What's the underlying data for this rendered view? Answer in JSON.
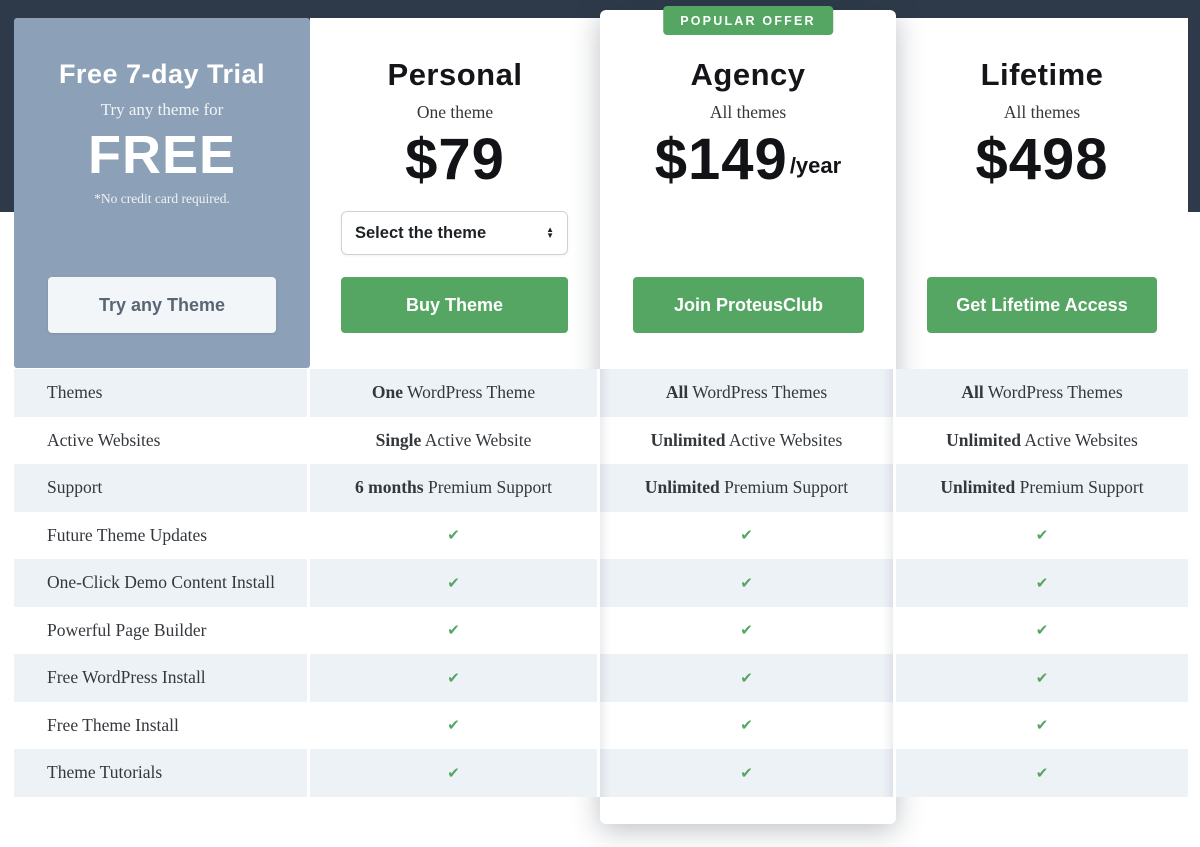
{
  "colors": {
    "navy_band": "#2e3a49",
    "trial_panel_blue": "#8ca1b7",
    "accent_green": "#55a663",
    "row_light": "#edf2f7"
  },
  "trial": {
    "title": "Free 7-day Trial",
    "subtitle": "Try any theme for",
    "price": "FREE",
    "note": "*No credit card required.",
    "button_label": "Try any Theme"
  },
  "plans": {
    "personal": {
      "name": "Personal",
      "subtitle": "One theme",
      "price": "$79",
      "select_label": "Select the theme",
      "button_label": "Buy Theme"
    },
    "agency": {
      "badge": "POPULAR OFFER",
      "name": "Agency",
      "subtitle": "All themes",
      "price": "$149",
      "price_suffix": "/year",
      "button_label": "Join ProteusClub"
    },
    "lifetime": {
      "name": "Lifetime",
      "subtitle": "All themes",
      "price": "$498",
      "button_label": "Get Lifetime Access"
    }
  },
  "table": {
    "rows": [
      {
        "label": "Themes",
        "cells": [
          {
            "bold": "One",
            "rest": " WordPress Theme"
          },
          {
            "bold": "All",
            "rest": " WordPress Themes"
          },
          {
            "bold": "All",
            "rest": " WordPress Themes"
          }
        ]
      },
      {
        "label": "Active Websites",
        "cells": [
          {
            "bold": "Single",
            "rest": " Active Website"
          },
          {
            "bold": "Unlimited",
            "rest": " Active Websites"
          },
          {
            "bold": "Unlimited",
            "rest": " Active Websites"
          }
        ]
      },
      {
        "label": "Support",
        "cells": [
          {
            "bold": "6 months",
            "rest": " Premium Support"
          },
          {
            "bold": "Unlimited",
            "rest": " Premium Support"
          },
          {
            "bold": "Unlimited",
            "rest": " Premium Support"
          }
        ]
      },
      {
        "label": "Future Theme Updates",
        "cells": [
          {
            "check": "✔"
          },
          {
            "check": "✔"
          },
          {
            "check": "✔"
          }
        ]
      },
      {
        "label": "One-Click Demo Content Install",
        "cells": [
          {
            "check": "✔"
          },
          {
            "check": "✔"
          },
          {
            "check": "✔"
          }
        ]
      },
      {
        "label": "Powerful Page Builder",
        "cells": [
          {
            "check": "✔"
          },
          {
            "check": "✔"
          },
          {
            "check": "✔"
          }
        ]
      },
      {
        "label": "Free WordPress Install",
        "cells": [
          {
            "check": "✔"
          },
          {
            "check": "✔"
          },
          {
            "check": "✔"
          }
        ]
      },
      {
        "label": "Free Theme Install",
        "cells": [
          {
            "check": "✔"
          },
          {
            "check": "✔"
          },
          {
            "check": "✔"
          }
        ]
      },
      {
        "label": "Theme Tutorials",
        "cells": [
          {
            "check": "✔"
          },
          {
            "check": "✔"
          },
          {
            "check": "✔"
          }
        ]
      }
    ]
  }
}
